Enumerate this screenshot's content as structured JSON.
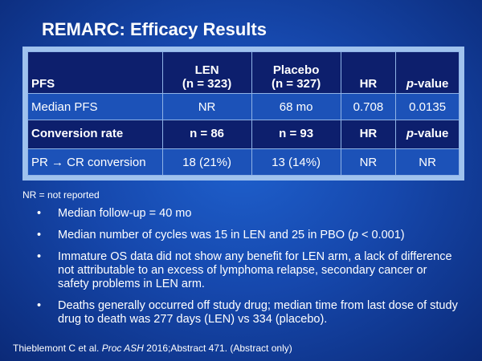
{
  "title": "REMARC: Efficacy Results",
  "table": {
    "header1": {
      "label": "PFS",
      "len_line1": "LEN",
      "len_line2": "(n = 323)",
      "placebo_line1": "Placebo",
      "placebo_line2": "(n = 327)",
      "hr": "HR",
      "p_italic": "p",
      "p_rest": "-value"
    },
    "row1": {
      "label": "Median PFS",
      "len": "NR",
      "placebo": "68 mo",
      "hr": "0.708",
      "p": "0.0135"
    },
    "header2": {
      "label": "Conversion rate",
      "len": "n = 86",
      "placebo": "n = 93",
      "hr": "HR",
      "p_italic": "p",
      "p_rest": "-value"
    },
    "row2": {
      "label_part1": "PR ",
      "arrow": "→",
      "label_part2": " CR conversion",
      "len": "18 (21%)",
      "placebo": "13 (14%)",
      "hr": "NR",
      "p": "NR"
    }
  },
  "footnote": "NR = not reported",
  "bullets": {
    "b1": "Median follow-up = 40 mo",
    "b2_pre": "Median number of cycles was 15 in LEN and 25 in PBO (",
    "b2_italic": "p",
    "b2_post": " < 0.001)",
    "b3": "Immature OS data did not show any benefit for LEN arm, a lack of difference not attributable to an excess of lymphoma relapse, secondary cancer or safety problems in LEN arm.",
    "b4": "Deaths generally occurred off study drug; median time from last dose of study drug to death was 277 days (LEN) vs 334 (placebo)."
  },
  "bullet_char": "•",
  "reference": {
    "pre": "Thieblemont C et al. ",
    "italic": "Proc ASH",
    "post": " 2016;Abstract 471. (Abstract only)"
  }
}
